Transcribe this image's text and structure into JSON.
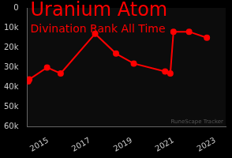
{
  "chart_data": {
    "type": "line",
    "title": "Uranium Atom",
    "subtitle": "Divination Rank All Time",
    "annotation": "RuneScape Tracker",
    "x": [
      2014.05,
      2014.1,
      2014.95,
      2015.6,
      2017.25,
      2018.25,
      2019.1,
      2020.6,
      2020.85,
      2021.0,
      2021.75,
      2022.6
    ],
    "values": [
      37000,
      36000,
      30000,
      33000,
      13000,
      23000,
      28000,
      32000,
      33000,
      12000,
      12000,
      15000
    ],
    "color": "#ff0000",
    "marker": "circle",
    "xlim": [
      2014,
      2023.5
    ],
    "xticks": [
      2015,
      2017,
      2019,
      2021,
      2023
    ],
    "ylim": [
      60000,
      0
    ],
    "yticks": [
      0,
      {
        "value": 10000,
        "label": "10k"
      },
      {
        "value": 20000,
        "label": "20k"
      },
      {
        "value": 30000,
        "label": "30k"
      },
      {
        "value": 40000,
        "label": "40k"
      },
      {
        "value": 50000,
        "label": "50k"
      },
      {
        "value": 60000,
        "label": "60k"
      }
    ],
    "grid": false
  }
}
